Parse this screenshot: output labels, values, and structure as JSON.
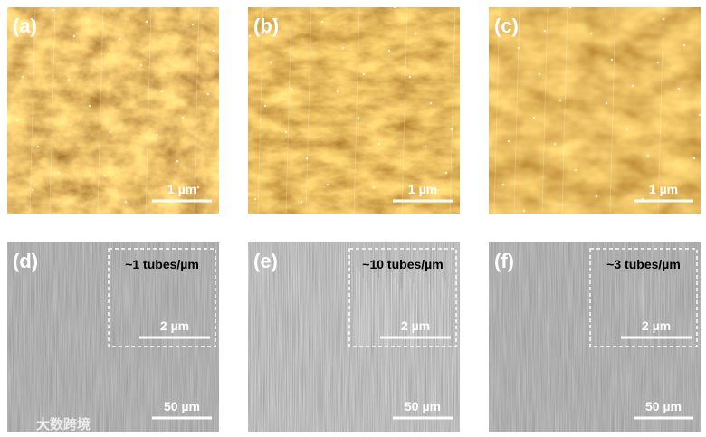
{
  "panels": [
    {
      "label": "(a)",
      "scale_bar": "1 µm"
    },
    {
      "label": "(b)",
      "scale_bar": "1 µm"
    },
    {
      "label": "(c)",
      "scale_bar": "1 µm"
    },
    {
      "label": "(d)",
      "inset_text": "~1 tubes/µm",
      "inset_scale_bar": "2 µm",
      "scale_bar": "50 µm"
    },
    {
      "label": "(e)",
      "inset_text": "~10 tubes/µm",
      "inset_scale_bar": "2 µm",
      "scale_bar": "50 µm"
    },
    {
      "label": "(f)",
      "inset_text": "~3 tubes/µm",
      "inset_scale_bar": "2 µm",
      "scale_bar": "50 µm"
    }
  ],
  "watermark": "大数跨境"
}
